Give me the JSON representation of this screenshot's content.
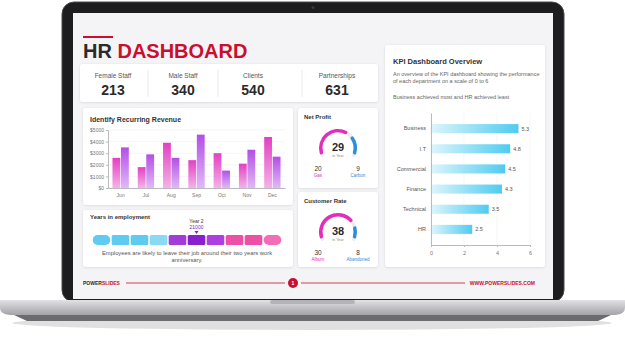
{
  "header": {
    "title": "HR DASHBOARD"
  },
  "stats": [
    {
      "label": "Female Staff",
      "value": 213
    },
    {
      "label": "Male Staff",
      "value": 340
    },
    {
      "label": "Clients",
      "value": 540
    },
    {
      "label": "Partnerships",
      "value": 631
    }
  ],
  "chart_data": [
    {
      "type": "bar",
      "title": "Identify Recurring Revenue",
      "categories": [
        "Jun",
        "Jul",
        "Aug",
        "Sep",
        "Oct",
        "Nov",
        "Dec"
      ],
      "series": [
        {
          "color": "#e43fc4",
          "values": [
            2600,
            1800,
            3900,
            2400,
            3000,
            2100,
            4400
          ]
        },
        {
          "color": "#b24fe6",
          "values": [
            3500,
            2900,
            2600,
            4600,
            1500,
            3300,
            2700
          ]
        }
      ],
      "ylim": [
        0,
        5000
      ],
      "yticks": [
        {
          "value": 0,
          "label": "$0"
        },
        {
          "value": 1000,
          "label": "$1000"
        },
        {
          "value": 2000,
          "label": "$2000"
        },
        {
          "value": 3000,
          "label": "$3000"
        },
        {
          "value": 4000,
          "label": "$4000"
        },
        {
          "value": 5000,
          "label": "$5000"
        }
      ],
      "grid": true
    },
    {
      "type": "gauge",
      "title": "Net Profit",
      "categories": [
        "Gas",
        "Carbon"
      ],
      "values": [
        20,
        9
      ],
      "colors": [
        "#e22dbd",
        "#2b8edb"
      ],
      "center_value": 29,
      "center_label": "in Year"
    },
    {
      "type": "gauge",
      "title": "Customer Rate",
      "categories": [
        "Album",
        "Abandoned"
      ],
      "values": [
        30,
        8
      ],
      "colors": [
        "#e22dbd",
        "#2b8edb"
      ],
      "center_value": 38,
      "center_label": "in Year"
    },
    {
      "type": "bar",
      "orientation": "horizontal",
      "title": "KPI Dashboard Overview",
      "subtitle": "An overview of the KPI dashboard showing the performance of each department on a scale of 0 to 6",
      "annotations": [
        "Business achieved most and HR achieved least"
      ],
      "categories": [
        "Business",
        "I.T",
        "Commercial",
        "Finance",
        "Technical",
        "HR"
      ],
      "values": [
        5.3,
        4.8,
        4.5,
        4.3,
        3.5,
        2.5
      ],
      "color": "#4fcbf0",
      "xlim": [
        0,
        6
      ],
      "xticks": [
        0,
        2,
        4,
        6
      ],
      "grid": true,
      "data_labels": true
    }
  ],
  "employment": {
    "title": "Years in employment",
    "marker_label": "Year 2",
    "marker_value": 21000,
    "note": "Employees are likely to leave their job around their two years work anniversary."
  },
  "footer": {
    "brand": [
      "POWER",
      "SLIDES"
    ],
    "page": 1,
    "url": "WWW.POWERSLIDES.COM"
  }
}
